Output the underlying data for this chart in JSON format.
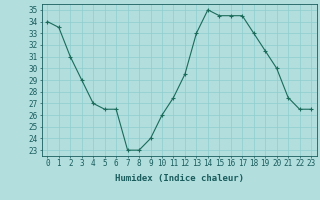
{
  "xlabel": "Humidex (Indice chaleur)",
  "x": [
    0,
    1,
    2,
    3,
    4,
    5,
    6,
    7,
    8,
    9,
    10,
    11,
    12,
    13,
    14,
    15,
    16,
    17,
    18,
    19,
    20,
    21,
    22,
    23
  ],
  "y": [
    34.0,
    33.5,
    31.0,
    29.0,
    27.0,
    26.5,
    26.5,
    23.0,
    23.0,
    24.0,
    26.0,
    27.5,
    29.5,
    33.0,
    35.0,
    34.5,
    34.5,
    34.5,
    33.0,
    31.5,
    30.0,
    27.5,
    26.5,
    26.5
  ],
  "ylim_min": 22.5,
  "ylim_max": 35.5,
  "yticks": [
    23,
    24,
    25,
    26,
    27,
    28,
    29,
    30,
    31,
    32,
    33,
    34,
    35
  ],
  "xticks": [
    0,
    1,
    2,
    3,
    4,
    5,
    6,
    7,
    8,
    9,
    10,
    11,
    12,
    13,
    14,
    15,
    16,
    17,
    18,
    19,
    20,
    21,
    22,
    23
  ],
  "line_color": "#1a6b5a",
  "marker": "+",
  "bg_color": "#b2dede",
  "grid_color": "#8ecece",
  "font_color": "#1a5c5c",
  "tick_fontsize": 5.5,
  "xlabel_fontsize": 6.5,
  "xlabel_fontweight": "bold"
}
